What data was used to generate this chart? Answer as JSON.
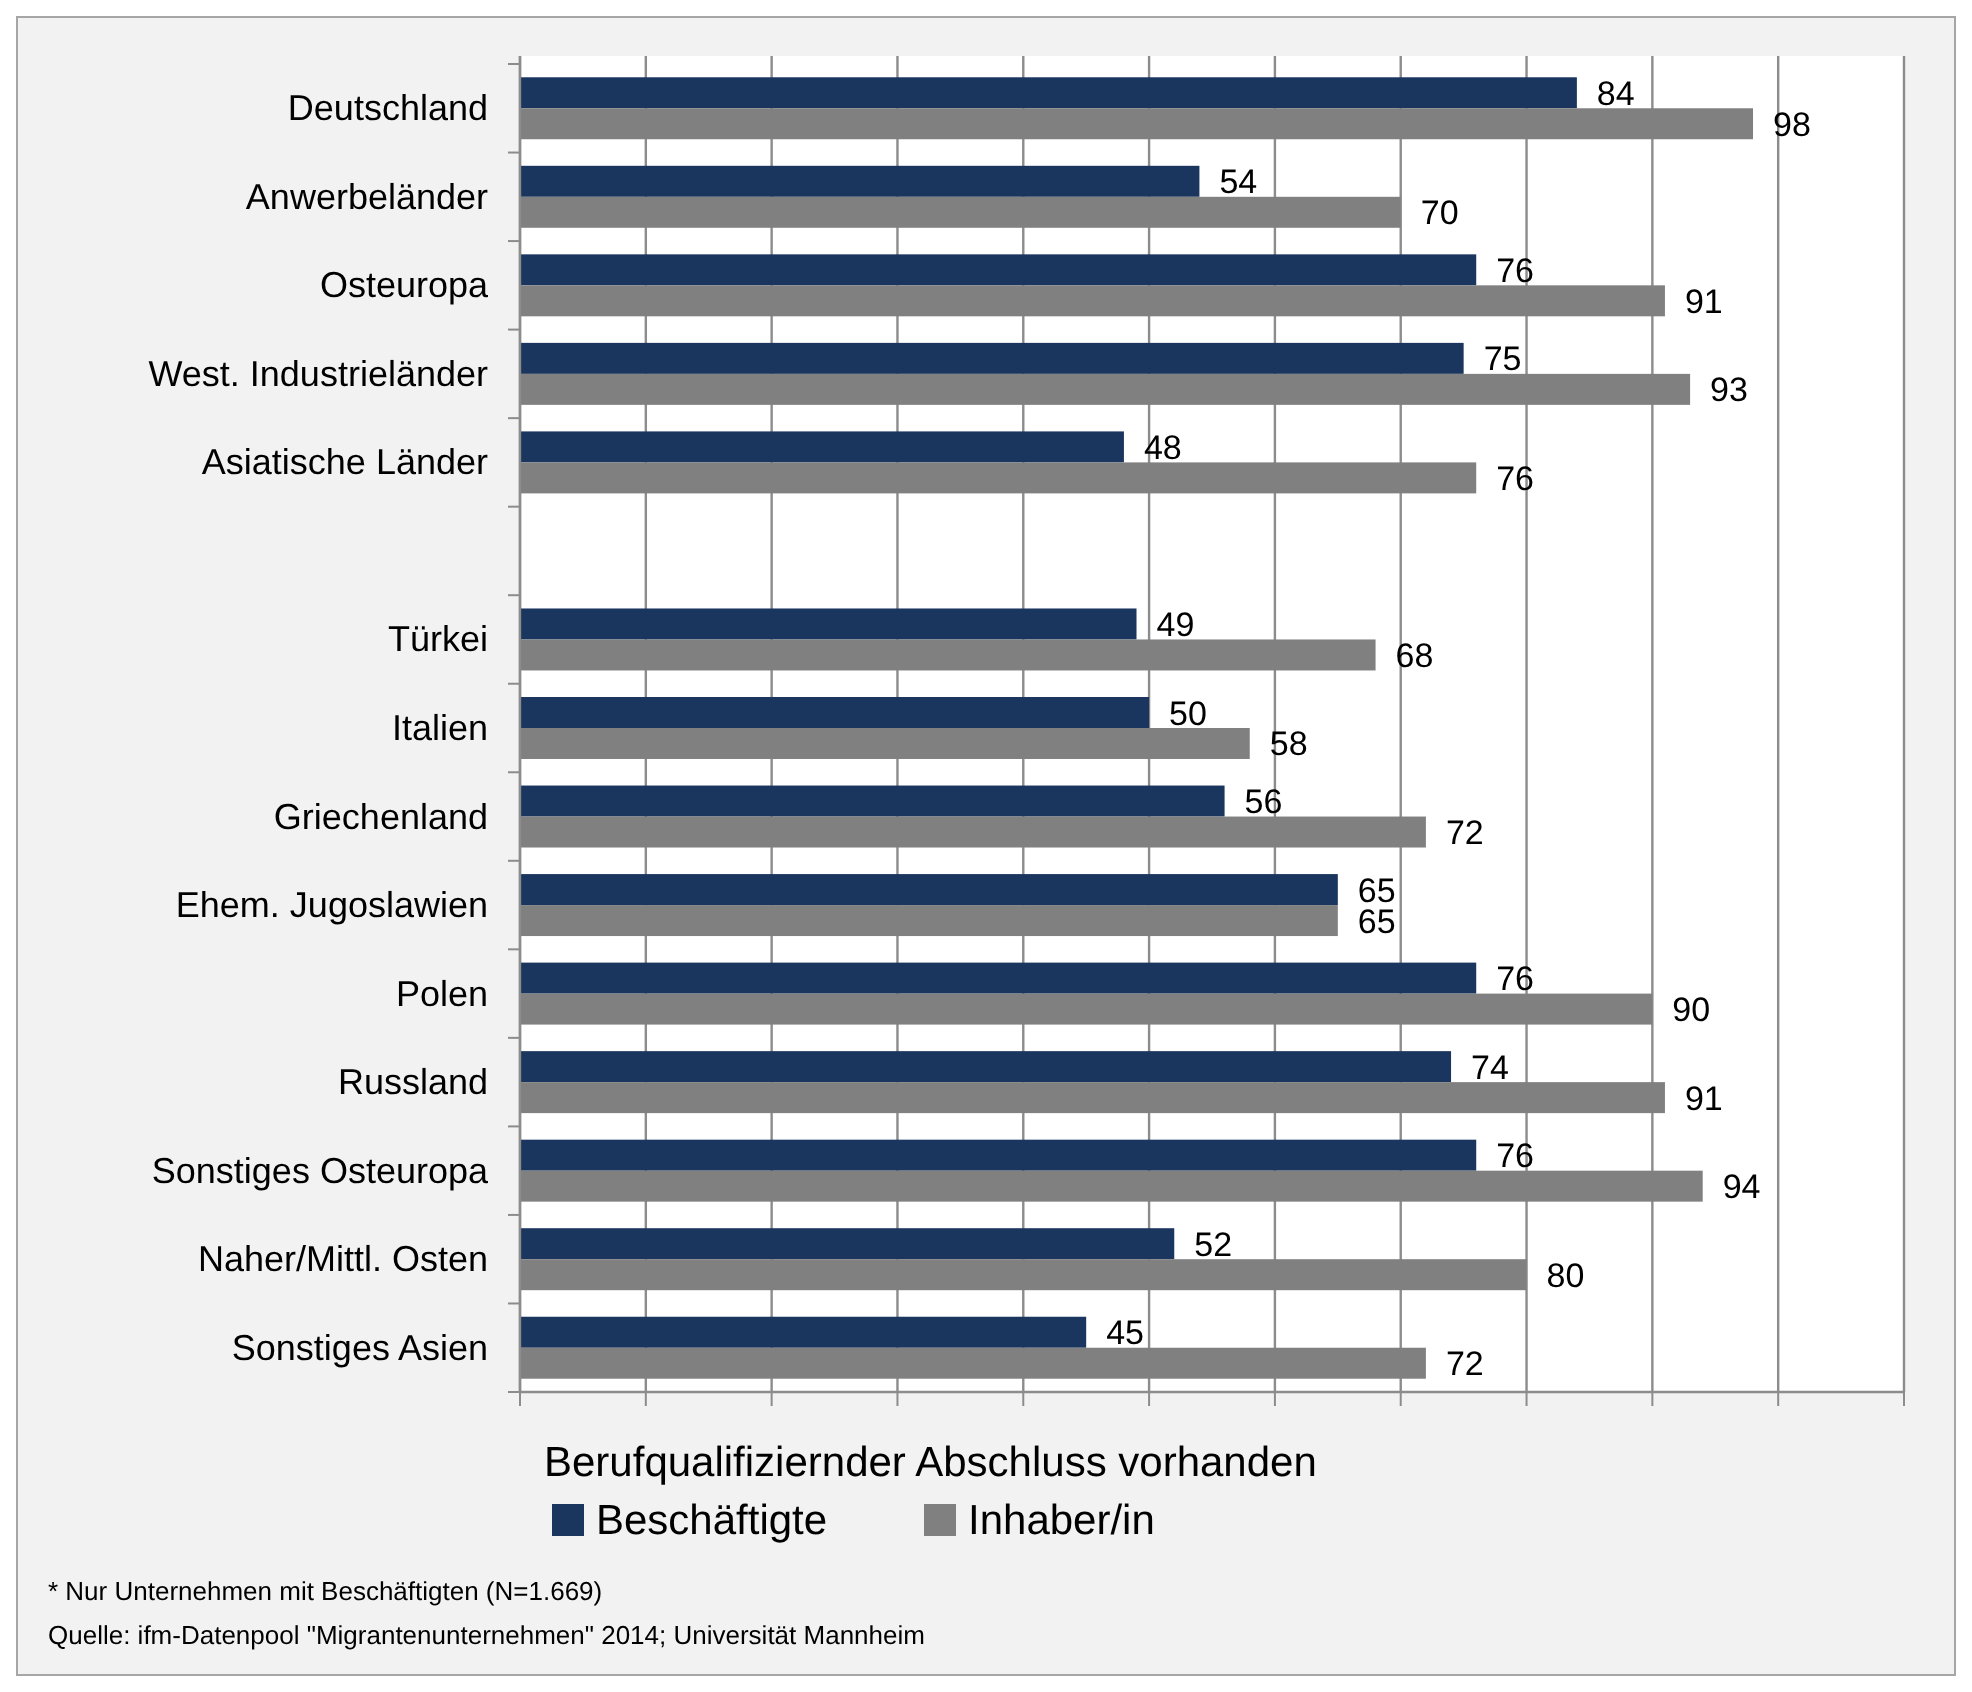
{
  "chart_data": {
    "type": "bar",
    "orientation": "horizontal",
    "categories": [
      "Deutschland",
      "Anwerbeländer",
      "Osteuropa",
      "West. Industrieländer",
      "Asiatische Länder",
      null,
      "Türkei",
      "Italien",
      "Griechenland",
      "Ehem. Jugoslawien",
      "Polen",
      "Russland",
      "Sonstiges Osteuropa",
      "Naher/Mittl. Osten",
      "Sonstiges Asien"
    ],
    "series": [
      {
        "name": "Beschäftigte",
        "color": "#1a355e",
        "values": [
          84,
          54,
          76,
          75,
          48,
          null,
          49,
          50,
          56,
          65,
          76,
          74,
          76,
          52,
          45
        ]
      },
      {
        "name": "Inhaber/in",
        "color": "#808080",
        "values": [
          98,
          70,
          91,
          93,
          76,
          null,
          68,
          58,
          72,
          65,
          90,
          91,
          94,
          80,
          72
        ]
      }
    ],
    "xlim": [
      0,
      110
    ],
    "xticks": [
      {
        "value": 0,
        "label": null
      },
      {
        "value": 10,
        "label": null
      },
      {
        "value": 20,
        "label": null
      },
      {
        "value": 30,
        "label": null
      },
      {
        "value": 40,
        "label": null
      },
      {
        "value": 50,
        "label": null
      },
      {
        "value": 60,
        "label": null
      },
      {
        "value": 70,
        "label": null
      },
      {
        "value": 80,
        "label": null
      },
      {
        "value": 90,
        "label": null
      },
      {
        "value": 100,
        "label": null
      },
      {
        "value": 110,
        "label": null
      }
    ],
    "tick_labels": "y",
    "grid": "x",
    "data_labels": true,
    "legend": "bottom",
    "legend_title": "Berufqualifiziernder Abschluss vorhanden",
    "annotations": [
      "*  Nur Unternehmen mit Beschäftigten (N=1.669)",
      "Quelle: ifm-Datenpool \"Migrantenunternehmen\" 2014; Universität Mannheim"
    ]
  }
}
